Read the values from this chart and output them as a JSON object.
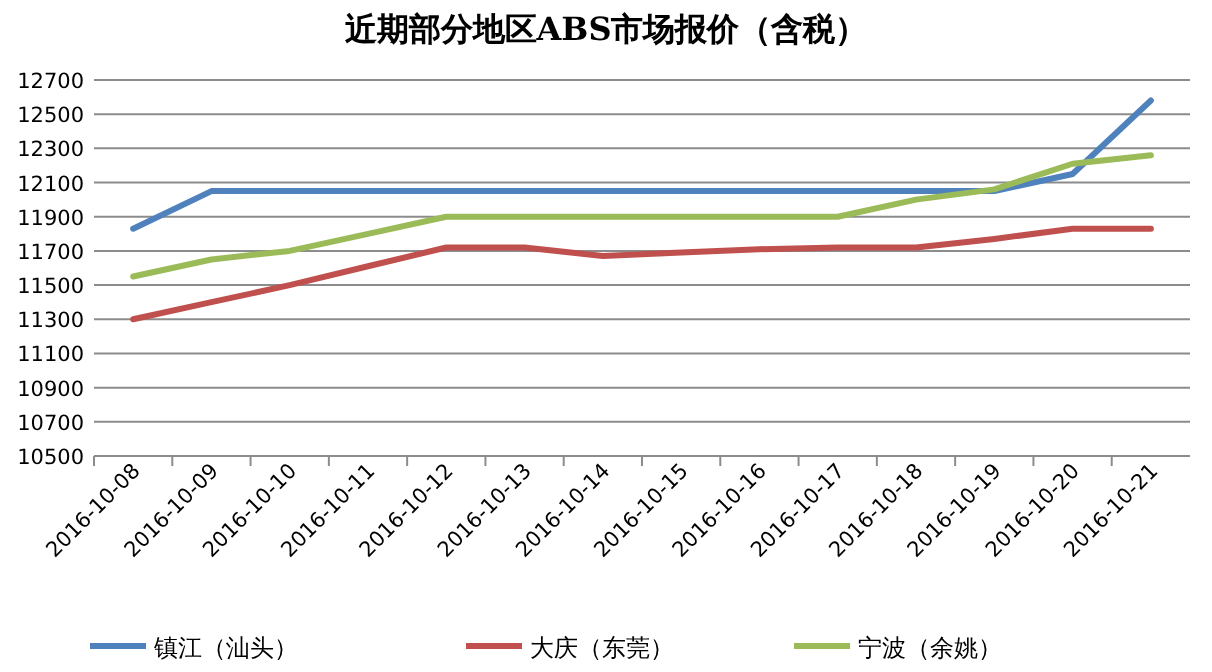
{
  "chart_data": {
    "type": "line",
    "title": "近期部分地区ABS市场报价（含税）",
    "categories": [
      "2016-10-08",
      "2016-10-09",
      "2016-10-10",
      "2016-10-11",
      "2016-10-12",
      "2016-10-13",
      "2016-10-14",
      "2016-10-15",
      "2016-10-16",
      "2016-10-17",
      "2016-10-18",
      "2016-10-19",
      "2016-10-20",
      "2016-10-21"
    ],
    "series": [
      {
        "name": "镇江（汕头）",
        "color": "#4f81bd",
        "values": [
          11830,
          12050,
          12050,
          12050,
          12050,
          12050,
          12050,
          12050,
          12050,
          12050,
          12050,
          12050,
          12150,
          12580
        ]
      },
      {
        "name": "大庆（东莞）",
        "color": "#c0504d",
        "values": [
          11300,
          11400,
          11500,
          11610,
          11720,
          11720,
          11670,
          11690,
          11710,
          11720,
          11720,
          11770,
          11830,
          11830
        ]
      },
      {
        "name": "宁波（余姚）",
        "color": "#9bbb59",
        "values": [
          11550,
          11650,
          11700,
          11800,
          11900,
          11900,
          11900,
          11900,
          11900,
          11900,
          12000,
          12060,
          12210,
          12260
        ]
      }
    ],
    "ylim": [
      10500,
      12700
    ],
    "yticks": [
      10500,
      10700,
      10900,
      11100,
      11300,
      11500,
      11700,
      11900,
      12100,
      12300,
      12500,
      12700
    ],
    "grid": "y",
    "legend": "bottom",
    "marker": "none",
    "line_style": "solid"
  }
}
